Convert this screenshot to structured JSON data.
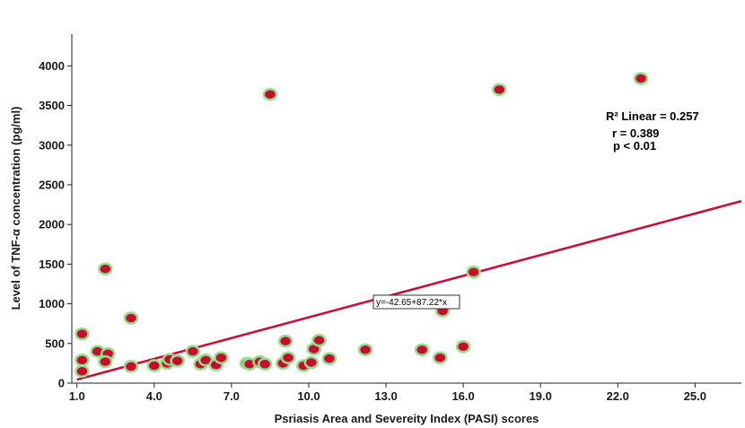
{
  "chart_data": {
    "type": "scatter",
    "title": "",
    "xlabel": "Psriasis Area and Severeity Index (PASI) scores",
    "ylabel": "Level of TNF-α concentration (pg/ml)",
    "xlim": [
      0,
      26.8
    ],
    "ylim": [
      0,
      4400
    ],
    "x_ticks": [
      1.0,
      4.0,
      7.0,
      10.0,
      13.0,
      16.0,
      19.0,
      22.0,
      25.0
    ],
    "x_tick_labels": [
      "1.0",
      "4.0",
      "7.0",
      "10.0",
      "13.0",
      "16.0",
      "19.0",
      "22.0",
      "25.0"
    ],
    "y_ticks": [
      0,
      500,
      1000,
      1500,
      2000,
      2500,
      3000,
      3500,
      4000
    ],
    "y_tick_labels": [
      "0",
      "500",
      "1000",
      "1500",
      "2000",
      "2500",
      "3000",
      "3500",
      "4000"
    ],
    "grid": false,
    "points": [
      {
        "x": 1.2,
        "y": 620
      },
      {
        "x": 1.2,
        "y": 290
      },
      {
        "x": 1.2,
        "y": 150
      },
      {
        "x": 1.8,
        "y": 400
      },
      {
        "x": 2.1,
        "y": 1440
      },
      {
        "x": 2.2,
        "y": 370
      },
      {
        "x": 2.1,
        "y": 270
      },
      {
        "x": 3.1,
        "y": 820
      },
      {
        "x": 3.1,
        "y": 210
      },
      {
        "x": 4.0,
        "y": 220
      },
      {
        "x": 4.5,
        "y": 250
      },
      {
        "x": 4.6,
        "y": 300
      },
      {
        "x": 4.9,
        "y": 280
      },
      {
        "x": 5.5,
        "y": 400
      },
      {
        "x": 5.8,
        "y": 240
      },
      {
        "x": 6.0,
        "y": 290
      },
      {
        "x": 6.4,
        "y": 230
      },
      {
        "x": 6.6,
        "y": 320
      },
      {
        "x": 7.6,
        "y": 250
      },
      {
        "x": 7.7,
        "y": 240
      },
      {
        "x": 8.1,
        "y": 270
      },
      {
        "x": 8.3,
        "y": 240
      },
      {
        "x": 8.5,
        "y": 3640
      },
      {
        "x": 9.0,
        "y": 250
      },
      {
        "x": 9.1,
        "y": 530
      },
      {
        "x": 9.2,
        "y": 320
      },
      {
        "x": 9.8,
        "y": 220
      },
      {
        "x": 10.1,
        "y": 260
      },
      {
        "x": 10.2,
        "y": 430
      },
      {
        "x": 10.4,
        "y": 540
      },
      {
        "x": 10.8,
        "y": 310
      },
      {
        "x": 12.2,
        "y": 420
      },
      {
        "x": 14.4,
        "y": 420
      },
      {
        "x": 15.1,
        "y": 320
      },
      {
        "x": 15.2,
        "y": 910
      },
      {
        "x": 16.0,
        "y": 460
      },
      {
        "x": 16.4,
        "y": 1400
      },
      {
        "x": 17.4,
        "y": 3700
      },
      {
        "x": 22.9,
        "y": 3840
      }
    ],
    "fit_line": {
      "intercept": -42.65,
      "slope": 87.22,
      "label": "y=-42.65+87.22*x"
    },
    "annotations": [
      "R² Linear = 0.257",
      "r = 0.389",
      "p < 0.01"
    ]
  },
  "colors": {
    "marker_fill": "#cc0a2f",
    "marker_edge": "#8fe08a",
    "fit_line": "#d10a33",
    "axis": "#222222"
  }
}
